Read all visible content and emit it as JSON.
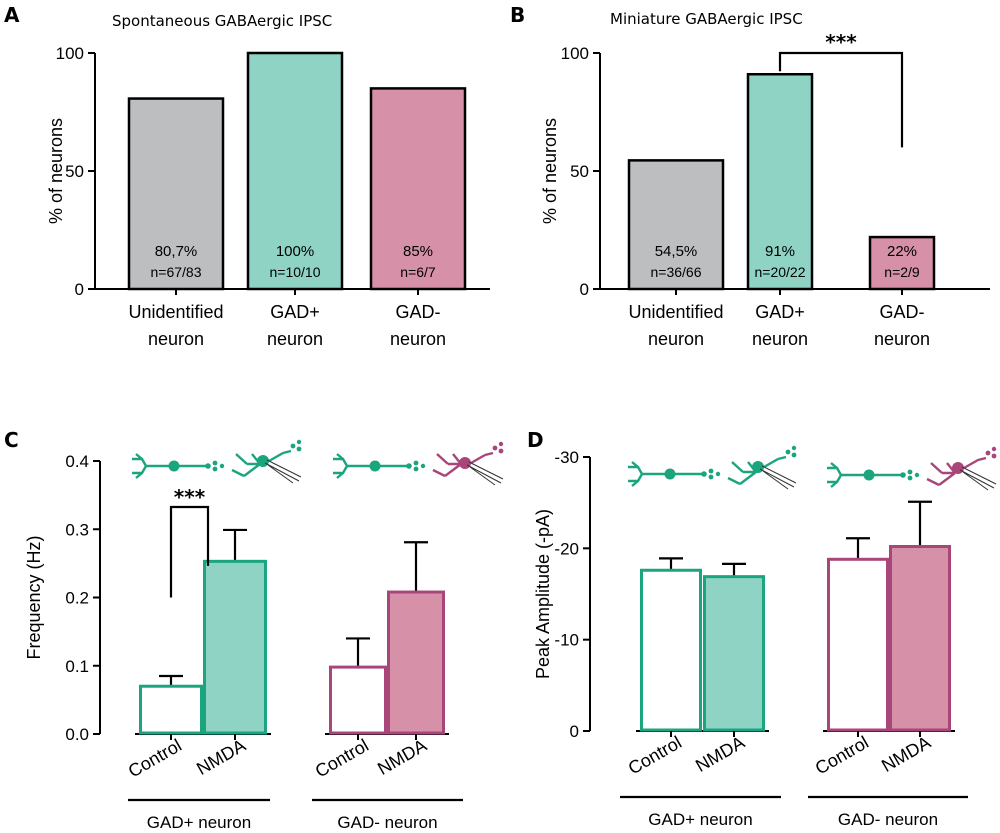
{
  "colors": {
    "gray": "#bcbec0",
    "teal": "#8fd3c4",
    "teal_line": "#1aa57f",
    "pink": "#d690a8",
    "pink_line": "#a8467a",
    "black": "#000000"
  },
  "chart_data": [
    {
      "panel": "A",
      "type": "bar",
      "title": "Spontaneous GABAergic IPSC",
      "ylabel": "% of neurons",
      "ylim": [
        0,
        100
      ],
      "yticks": [
        "0",
        "50",
        "100"
      ],
      "categories": [
        {
          "line1": "Unidentified",
          "line2": "neuron"
        },
        {
          "line1": "GAD+",
          "line2": "neuron"
        },
        {
          "line1": "GAD-",
          "line2": "neuron"
        }
      ],
      "values": [
        80.7,
        100,
        85
      ],
      "value_labels": [
        "80,7%",
        "100%",
        "85%"
      ],
      "n_labels": [
        "n=67/83",
        "n=10/10",
        "n=6/7"
      ],
      "colors": [
        "gray",
        "teal",
        "pink"
      ]
    },
    {
      "panel": "B",
      "type": "bar",
      "title": "Miniature GABAergic IPSC",
      "ylabel": "% of neurons",
      "ylim": [
        0,
        100
      ],
      "yticks": [
        "0",
        "50",
        "100"
      ],
      "categories": [
        {
          "line1": "Unidentified",
          "line2": "neuron"
        },
        {
          "line1": "GAD+",
          "line2": "neuron"
        },
        {
          "line1": "GAD-",
          "line2": "neuron"
        }
      ],
      "values": [
        54.5,
        91,
        22
      ],
      "value_labels": [
        "54,5%",
        "91%",
        "22%"
      ],
      "n_labels": [
        "n=36/66",
        "n=20/22",
        "n=2/9"
      ],
      "colors": [
        "gray",
        "teal",
        "pink"
      ],
      "significance": {
        "between": [
          1,
          2
        ],
        "label": "***"
      }
    },
    {
      "panel": "C",
      "type": "bar",
      "ylabel": "Frequency (Hz)",
      "ylim": [
        0,
        0.4
      ],
      "yticks": [
        "0.0",
        "0.1",
        "0.2",
        "0.3",
        "0.4"
      ],
      "groups": [
        {
          "name": "GAD+ neuron",
          "bars": [
            {
              "label": "Control",
              "value": 0.07,
              "error": 0.015,
              "style": "open-teal"
            },
            {
              "label": "NMDA",
              "value": 0.253,
              "error": 0.046,
              "style": "teal"
            }
          ]
        },
        {
          "name": "GAD- neuron",
          "bars": [
            {
              "label": "Control",
              "value": 0.098,
              "error": 0.042,
              "style": "open-pink"
            },
            {
              "label": "NMDA",
              "value": 0.208,
              "error": 0.073,
              "style": "pink"
            }
          ]
        }
      ],
      "significance": {
        "group": 0,
        "label": "***"
      }
    },
    {
      "panel": "D",
      "type": "bar",
      "ylabel": "Peak Amplitude (-pA)",
      "ylim": [
        0,
        -30
      ],
      "yticks": [
        "0",
        "-10",
        "-20",
        "-30"
      ],
      "groups": [
        {
          "name": "GAD+ neuron",
          "bars": [
            {
              "label": "Control",
              "value": -17.6,
              "error": 1.3,
              "style": "open-teal"
            },
            {
              "label": "NMDA",
              "value": -16.9,
              "error": 1.4,
              "style": "teal"
            }
          ]
        },
        {
          "name": "GAD- neuron",
          "bars": [
            {
              "label": "Control",
              "value": -18.8,
              "error": 2.3,
              "style": "open-pink"
            },
            {
              "label": "NMDA",
              "value": -20.2,
              "error": 4.9,
              "style": "pink"
            }
          ]
        }
      ]
    }
  ]
}
